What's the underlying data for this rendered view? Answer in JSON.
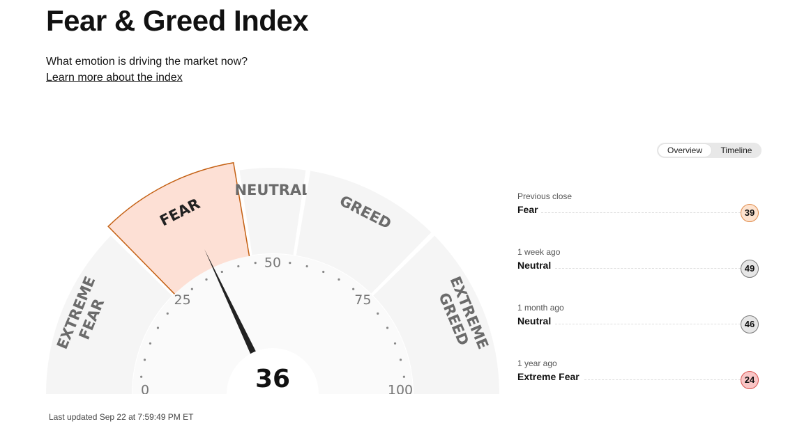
{
  "page": {
    "title": "Fear & Greed Index",
    "subtitle": "What emotion is driving the market now?",
    "learn_more": "Learn more about the index",
    "last_updated": "Last updated Sep 22 at 7:59:49 PM ET"
  },
  "view_toggle": {
    "options": [
      "Overview",
      "Timeline"
    ],
    "selected": "Overview"
  },
  "gauge": {
    "value": 36,
    "value_label": "36",
    "current_rating": "FEAR",
    "segments": [
      {
        "label_lines": [
          "EXTREME",
          "FEAR"
        ],
        "from": 0,
        "to": 25
      },
      {
        "label_lines": [
          "FEAR"
        ],
        "from": 25,
        "to": 45
      },
      {
        "label_lines": [
          "NEUTRAL"
        ],
        "from": 45,
        "to": 55
      },
      {
        "label_lines": [
          "GREED"
        ],
        "from": 55,
        "to": 75
      },
      {
        "label_lines": [
          "EXTREME",
          "GREED"
        ],
        "from": 75,
        "to": 100
      }
    ],
    "scale_labels": [
      "0",
      "25",
      "50",
      "75",
      "100"
    ],
    "colors": {
      "segment": "#f5f5f5",
      "active_fill": "#fde0d5",
      "active_stroke": "#c46012",
      "label": "#6b6b6b",
      "active_label": "#222222",
      "needle": "#222222"
    }
  },
  "history": [
    {
      "label": "Previous close",
      "rating": "Fear",
      "value": "39",
      "badge_bg": "#fde3cf",
      "badge_border": "#e08c4c"
    },
    {
      "label": "1 week ago",
      "rating": "Neutral",
      "value": "49",
      "badge_bg": "#e6e6e6",
      "badge_border": "#777777"
    },
    {
      "label": "1 month ago",
      "rating": "Neutral",
      "value": "46",
      "badge_bg": "#e6e6e6",
      "badge_border": "#777777"
    },
    {
      "label": "1 year ago",
      "rating": "Extreme Fear",
      "value": "24",
      "badge_bg": "#f9c6c6",
      "badge_border": "#d9534f"
    }
  ]
}
